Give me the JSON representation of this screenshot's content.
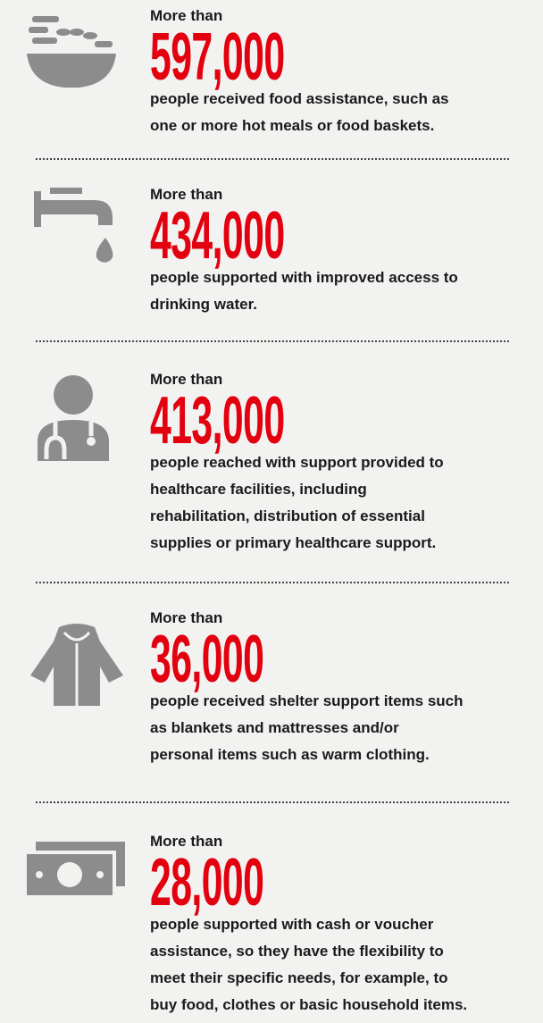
{
  "items": [
    {
      "prefix": "More than",
      "number": "597,000",
      "description": [
        "people received food assistance, such as",
        "one or more hot meals or food baskets."
      ]
    },
    {
      "prefix": "More than",
      "number": "434,000",
      "description": [
        "people supported with improved access to",
        "drinking water."
      ]
    },
    {
      "prefix": "More than",
      "number": "413,000",
      "description": [
        "people reached with support provided to",
        "healthcare facilities, including",
        "rehabilitation, distribution of essential",
        "supplies or primary healthcare support."
      ]
    },
    {
      "prefix": "More than",
      "number": "36,000",
      "description": [
        "people received shelter support items such",
        "as blankets and mattresses and/or",
        "personal items such as warm clothing."
      ]
    },
    {
      "prefix": "More than",
      "number": "28,000",
      "description": [
        "people supported with cash or voucher",
        "assistance, so they have the flexibility to",
        "meet their specific needs, for example, to",
        "buy food, clothes or basic household items."
      ]
    }
  ]
}
